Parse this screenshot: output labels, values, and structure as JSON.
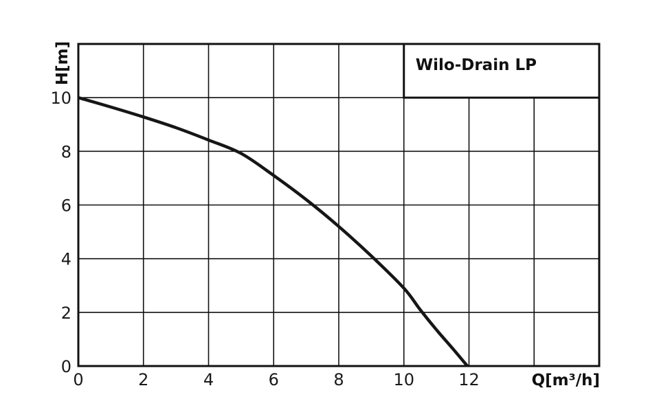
{
  "chart_data": {
    "type": "line",
    "title": "Wilo-Drain LP",
    "xlabel": "Q[m³/h]",
    "ylabel": "H[m]",
    "xlim": [
      0,
      16
    ],
    "ylim": [
      0,
      12
    ],
    "x_ticks": [
      0,
      2,
      4,
      6,
      8,
      10,
      12
    ],
    "y_ticks": [
      0,
      2,
      4,
      6,
      8,
      10
    ],
    "grid": true,
    "legend_position": "top-right",
    "series": [
      {
        "name": "Wilo-Drain LP",
        "color": "#161616",
        "x": [
          0,
          1,
          2,
          3,
          4,
          5,
          6,
          7,
          8,
          9,
          10,
          10.5,
          11,
          11.5,
          11.95
        ],
        "y": [
          10.0,
          9.65,
          9.28,
          8.88,
          8.42,
          7.92,
          7.1,
          6.2,
          5.2,
          4.1,
          2.9,
          2.1,
          1.35,
          0.65,
          0.0
        ]
      }
    ]
  }
}
